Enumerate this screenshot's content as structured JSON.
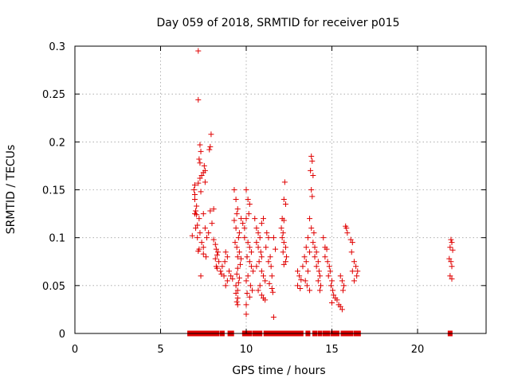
{
  "chart_data": {
    "type": "scatter",
    "title": "Day 059 of 2018, SRMTID for receiver p015",
    "xlabel": "GPS time / hours",
    "ylabel": "SRMTID / TECUs",
    "xlim": [
      0,
      24
    ],
    "ylim": [
      0,
      0.3
    ],
    "x_ticks": [
      0,
      5,
      10,
      15,
      20
    ],
    "x_tick_labels": [
      "0",
      "5",
      "10",
      "15",
      "20"
    ],
    "y_ticks": [
      0,
      0.05,
      0.1,
      0.15,
      0.2,
      0.25,
      0.3
    ],
    "y_tick_labels": [
      "0",
      "0.05",
      "0.1",
      "0.15",
      "0.2",
      "0.25",
      "0.3"
    ],
    "grid": true,
    "marker": "plus",
    "color": "#e00000",
    "series": [
      {
        "name": "SRMTID",
        "points": [
          [
            7.2,
            0.295
          ],
          [
            7.2,
            0.244
          ],
          [
            7.95,
            0.208
          ],
          [
            7.3,
            0.197
          ],
          [
            7.35,
            0.19
          ],
          [
            7.9,
            0.195
          ],
          [
            7.85,
            0.192
          ],
          [
            7.25,
            0.182
          ],
          [
            7.3,
            0.178
          ],
          [
            7.55,
            0.175
          ],
          [
            7.6,
            0.17
          ],
          [
            7.5,
            0.168
          ],
          [
            7.4,
            0.165
          ],
          [
            7.3,
            0.162
          ],
          [
            7.2,
            0.157
          ],
          [
            7.6,
            0.158
          ],
          [
            7.0,
            0.155
          ],
          [
            6.95,
            0.15
          ],
          [
            7.0,
            0.145
          ],
          [
            7.0,
            0.14
          ],
          [
            7.35,
            0.148
          ],
          [
            7.1,
            0.133
          ],
          [
            7.05,
            0.128
          ],
          [
            7.0,
            0.125
          ],
          [
            7.1,
            0.124
          ],
          [
            7.25,
            0.12
          ],
          [
            7.5,
            0.125
          ],
          [
            7.9,
            0.128
          ],
          [
            8.1,
            0.13
          ],
          [
            7.15,
            0.113
          ],
          [
            7.05,
            0.11
          ],
          [
            6.85,
            0.102
          ],
          [
            7.15,
            0.1
          ],
          [
            7.3,
            0.105
          ],
          [
            7.6,
            0.11
          ],
          [
            7.8,
            0.105
          ],
          [
            7.7,
            0.1
          ],
          [
            7.4,
            0.095
          ],
          [
            7.5,
            0.09
          ],
          [
            7.25,
            0.088
          ],
          [
            7.2,
            0.086
          ],
          [
            7.5,
            0.083
          ],
          [
            7.65,
            0.08
          ],
          [
            7.35,
            0.06
          ],
          [
            8.0,
            0.115
          ],
          [
            8.1,
            0.098
          ],
          [
            8.2,
            0.093
          ],
          [
            8.25,
            0.088
          ],
          [
            8.35,
            0.085
          ],
          [
            8.3,
            0.082
          ],
          [
            8.2,
            0.078
          ],
          [
            8.4,
            0.075
          ],
          [
            8.25,
            0.07
          ],
          [
            8.3,
            0.068
          ],
          [
            8.5,
            0.065
          ],
          [
            8.55,
            0.062
          ],
          [
            8.7,
            0.06
          ],
          [
            8.6,
            0.07
          ],
          [
            8.75,
            0.075
          ],
          [
            8.8,
            0.085
          ],
          [
            8.9,
            0.08
          ],
          [
            9.0,
            0.065
          ],
          [
            9.1,
            0.06
          ],
          [
            9.2,
            0.057
          ],
          [
            8.9,
            0.055
          ],
          [
            8.8,
            0.05
          ],
          [
            9.3,
            0.15
          ],
          [
            9.4,
            0.14
          ],
          [
            9.5,
            0.13
          ],
          [
            9.45,
            0.125
          ],
          [
            9.3,
            0.118
          ],
          [
            9.4,
            0.11
          ],
          [
            9.6,
            0.105
          ],
          [
            9.55,
            0.1
          ],
          [
            9.35,
            0.095
          ],
          [
            9.45,
            0.09
          ],
          [
            9.6,
            0.085
          ],
          [
            9.5,
            0.08
          ],
          [
            9.7,
            0.078
          ],
          [
            9.65,
            0.072
          ],
          [
            9.5,
            0.068
          ],
          [
            9.45,
            0.062
          ],
          [
            9.6,
            0.058
          ],
          [
            9.55,
            0.053
          ],
          [
            9.4,
            0.05
          ],
          [
            9.5,
            0.045
          ],
          [
            9.4,
            0.042
          ],
          [
            9.5,
            0.037
          ],
          [
            9.45,
            0.033
          ],
          [
            9.5,
            0.03
          ],
          [
            9.7,
            0.12
          ],
          [
            9.8,
            0.115
          ],
          [
            9.9,
            0.11
          ],
          [
            10.0,
            0.15
          ],
          [
            10.1,
            0.14
          ],
          [
            10.2,
            0.135
          ],
          [
            10.15,
            0.125
          ],
          [
            10.0,
            0.12
          ],
          [
            9.9,
            0.1
          ],
          [
            10.1,
            0.095
          ],
          [
            10.2,
            0.09
          ],
          [
            10.3,
            0.085
          ],
          [
            10.05,
            0.08
          ],
          [
            10.2,
            0.075
          ],
          [
            10.3,
            0.07
          ],
          [
            10.4,
            0.065
          ],
          [
            10.1,
            0.06
          ],
          [
            10.0,
            0.055
          ],
          [
            10.25,
            0.05
          ],
          [
            10.35,
            0.045
          ],
          [
            10.05,
            0.042
          ],
          [
            10.2,
            0.038
          ],
          [
            10.0,
            0.03
          ],
          [
            10.0,
            0.02
          ],
          [
            10.5,
            0.12
          ],
          [
            10.6,
            0.11
          ],
          [
            10.7,
            0.105
          ],
          [
            10.8,
            0.1
          ],
          [
            10.6,
            0.095
          ],
          [
            10.7,
            0.09
          ],
          [
            10.85,
            0.085
          ],
          [
            10.9,
            0.08
          ],
          [
            10.75,
            0.075
          ],
          [
            10.6,
            0.07
          ],
          [
            10.9,
            0.065
          ],
          [
            11.0,
            0.06
          ],
          [
            11.1,
            0.055
          ],
          [
            10.8,
            0.05
          ],
          [
            10.7,
            0.045
          ],
          [
            10.9,
            0.04
          ],
          [
            11.0,
            0.037
          ],
          [
            11.1,
            0.035
          ],
          [
            10.9,
            0.115
          ],
          [
            11.0,
            0.12
          ],
          [
            11.2,
            0.105
          ],
          [
            11.3,
            0.1
          ],
          [
            11.15,
            0.09
          ],
          [
            11.4,
            0.08
          ],
          [
            11.3,
            0.075
          ],
          [
            11.45,
            0.07
          ],
          [
            11.5,
            0.06
          ],
          [
            11.35,
            0.052
          ],
          [
            11.5,
            0.047
          ],
          [
            11.55,
            0.043
          ],
          [
            11.6,
            0.017
          ],
          [
            11.6,
            0.1
          ],
          [
            11.7,
            0.088
          ],
          [
            12.1,
            0.12
          ],
          [
            12.2,
            0.118
          ],
          [
            12.05,
            0.11
          ],
          [
            12.15,
            0.105
          ],
          [
            12.25,
            0.158
          ],
          [
            12.2,
            0.14
          ],
          [
            12.3,
            0.135
          ],
          [
            12.1,
            0.1
          ],
          [
            12.2,
            0.095
          ],
          [
            12.3,
            0.09
          ],
          [
            12.15,
            0.085
          ],
          [
            12.35,
            0.08
          ],
          [
            12.3,
            0.075
          ],
          [
            12.2,
            0.072
          ],
          [
            13.0,
            0.065
          ],
          [
            13.1,
            0.06
          ],
          [
            13.2,
            0.056
          ],
          [
            13.0,
            0.05
          ],
          [
            13.15,
            0.047
          ],
          [
            13.3,
            0.07
          ],
          [
            13.4,
            0.08
          ],
          [
            13.5,
            0.09
          ],
          [
            13.6,
            0.1
          ],
          [
            13.7,
            0.085
          ],
          [
            13.5,
            0.075
          ],
          [
            13.6,
            0.065
          ],
          [
            13.45,
            0.055
          ],
          [
            13.55,
            0.05
          ],
          [
            13.7,
            0.045
          ],
          [
            13.8,
            0.185
          ],
          [
            13.85,
            0.18
          ],
          [
            13.75,
            0.17
          ],
          [
            13.9,
            0.165
          ],
          [
            13.8,
            0.15
          ],
          [
            13.85,
            0.143
          ],
          [
            13.7,
            0.12
          ],
          [
            13.8,
            0.11
          ],
          [
            13.95,
            0.105
          ],
          [
            13.9,
            0.095
          ],
          [
            14.0,
            0.09
          ],
          [
            14.1,
            0.085
          ],
          [
            14.0,
            0.08
          ],
          [
            14.2,
            0.075
          ],
          [
            14.1,
            0.07
          ],
          [
            14.25,
            0.065
          ],
          [
            14.3,
            0.06
          ],
          [
            14.2,
            0.055
          ],
          [
            14.35,
            0.05
          ],
          [
            14.3,
            0.045
          ],
          [
            14.5,
            0.1
          ],
          [
            14.6,
            0.09
          ],
          [
            14.7,
            0.088
          ],
          [
            14.6,
            0.08
          ],
          [
            14.75,
            0.075
          ],
          [
            14.85,
            0.07
          ],
          [
            14.9,
            0.065
          ],
          [
            14.8,
            0.06
          ],
          [
            15.0,
            0.055
          ],
          [
            14.95,
            0.05
          ],
          [
            15.05,
            0.045
          ],
          [
            15.1,
            0.04
          ],
          [
            15.2,
            0.037
          ],
          [
            15.3,
            0.035
          ],
          [
            15.0,
            0.032
          ],
          [
            15.4,
            0.03
          ],
          [
            15.5,
            0.028
          ],
          [
            15.6,
            0.025
          ],
          [
            15.5,
            0.06
          ],
          [
            15.6,
            0.055
          ],
          [
            15.7,
            0.05
          ],
          [
            15.65,
            0.045
          ],
          [
            15.8,
            0.112
          ],
          [
            15.85,
            0.11
          ],
          [
            15.9,
            0.105
          ],
          [
            16.1,
            0.098
          ],
          [
            16.2,
            0.095
          ],
          [
            16.15,
            0.085
          ],
          [
            16.3,
            0.075
          ],
          [
            16.4,
            0.07
          ],
          [
            16.2,
            0.065
          ],
          [
            16.5,
            0.065
          ],
          [
            16.45,
            0.06
          ],
          [
            16.3,
            0.055
          ],
          [
            21.95,
            0.098
          ],
          [
            22.0,
            0.095
          ],
          [
            21.9,
            0.09
          ],
          [
            22.05,
            0.087
          ],
          [
            21.85,
            0.078
          ],
          [
            21.95,
            0.075
          ],
          [
            22.0,
            0.07
          ],
          [
            21.9,
            0.06
          ],
          [
            22.0,
            0.057
          ],
          [
            6.7,
            0
          ],
          [
            6.8,
            0
          ],
          [
            6.95,
            0
          ],
          [
            7.2,
            0
          ],
          [
            7.45,
            0
          ],
          [
            7.6,
            0
          ],
          [
            7.8,
            0
          ],
          [
            8.05,
            0
          ],
          [
            8.3,
            0
          ],
          [
            8.6,
            0
          ],
          [
            9.05,
            0
          ],
          [
            9.15,
            0
          ],
          [
            9.9,
            0
          ],
          [
            10.0,
            0
          ],
          [
            10.2,
            0
          ],
          [
            10.5,
            0
          ],
          [
            10.6,
            0
          ],
          [
            10.8,
            0
          ],
          [
            11.15,
            0
          ],
          [
            11.3,
            0
          ],
          [
            11.55,
            0
          ],
          [
            11.65,
            0
          ],
          [
            11.85,
            0
          ],
          [
            12.05,
            0
          ],
          [
            12.3,
            0
          ],
          [
            12.45,
            0
          ],
          [
            12.6,
            0
          ],
          [
            12.75,
            0
          ],
          [
            12.9,
            0
          ],
          [
            13.05,
            0
          ],
          [
            13.2,
            0
          ],
          [
            13.6,
            0
          ],
          [
            14.0,
            0
          ],
          [
            14.3,
            0
          ],
          [
            14.6,
            0
          ],
          [
            14.75,
            0
          ],
          [
            15.05,
            0
          ],
          [
            15.3,
            0
          ],
          [
            15.65,
            0
          ],
          [
            15.9,
            0
          ],
          [
            16.1,
            0
          ],
          [
            16.4,
            0
          ],
          [
            16.55,
            0
          ],
          [
            21.9,
            0
          ]
        ]
      }
    ]
  }
}
